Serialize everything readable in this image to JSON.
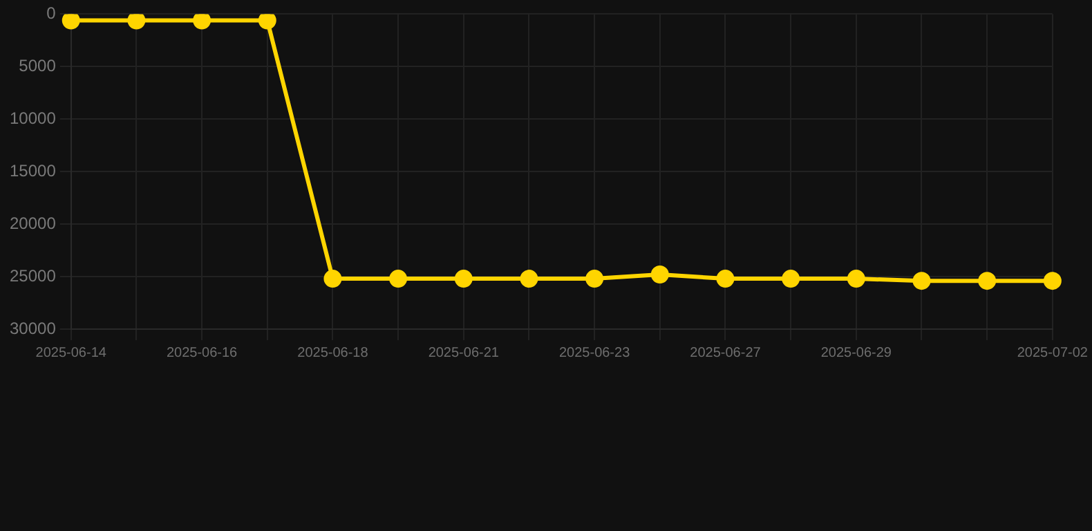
{
  "chart_data": {
    "type": "line",
    "categories": [
      "2025-06-14",
      null,
      "2025-06-16",
      null,
      "2025-06-18",
      null,
      "2025-06-21",
      null,
      "2025-06-23",
      null,
      "2025-06-27",
      null,
      "2025-06-29",
      null,
      null,
      "2025-07-02"
    ],
    "series": [
      {
        "color": "#ffd500",
        "values": [
          600,
          600,
          600,
          600,
          25200,
          25200,
          25200,
          25200,
          25200,
          24800,
          25200,
          25200,
          25200,
          25400,
          25400,
          25400
        ]
      }
    ],
    "ylim": [
      30000,
      0
    ],
    "yticks": [
      0,
      5000,
      10000,
      15000,
      20000,
      25000,
      30000
    ],
    "grid": true,
    "marker": "circle",
    "line_style": "solid"
  }
}
